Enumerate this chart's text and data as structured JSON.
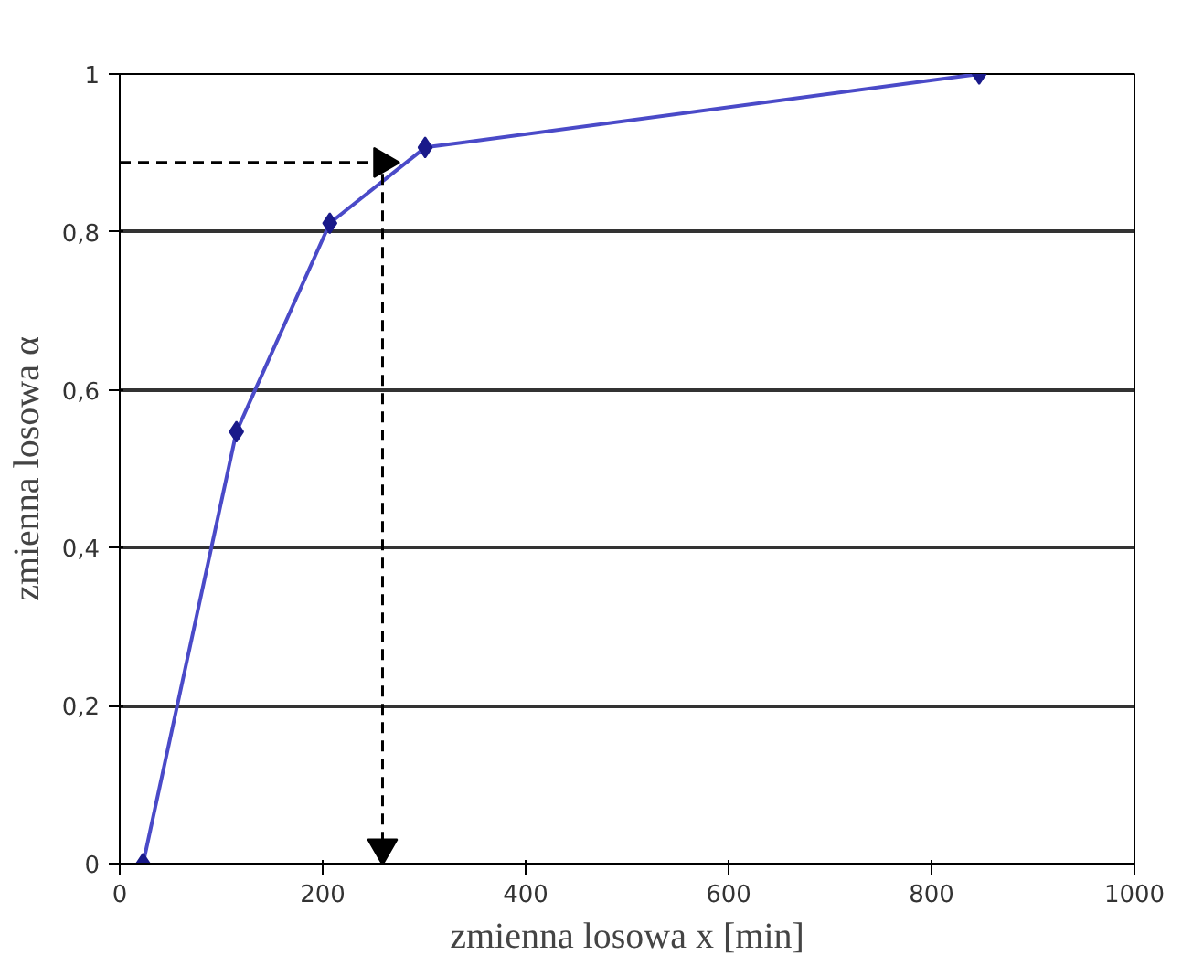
{
  "chart_data": {
    "type": "line",
    "xlabel": "zmienna losowa x [min]",
    "ylabel": "zmienna losowa α",
    "xlim": [
      0,
      1000
    ],
    "ylim": [
      0,
      1
    ],
    "xticks": [
      0,
      200,
      400,
      600,
      800,
      1000
    ],
    "yticks": [
      0,
      {
        "value": 0.2,
        "label": "0,2"
      },
      {
        "value": 0.4,
        "label": "0,4"
      },
      {
        "value": 0.6,
        "label": "0,6"
      },
      {
        "value": 0.8,
        "label": "0,8"
      },
      1
    ],
    "grid": "y",
    "series": [
      {
        "color": "#4a4ac8",
        "x": [
          23,
          115,
          207,
          301,
          847
        ],
        "values": [
          0,
          0.547,
          0.811,
          0.907,
          1
        ],
        "marker": "diamond",
        "line_style": "solid"
      },
      {
        "color": "#000000",
        "x": [
          0,
          259,
          259
        ],
        "values": [
          0.888,
          0.888,
          0.02
        ],
        "marker": "triangle",
        "line_style": "dashed"
      }
    ]
  }
}
